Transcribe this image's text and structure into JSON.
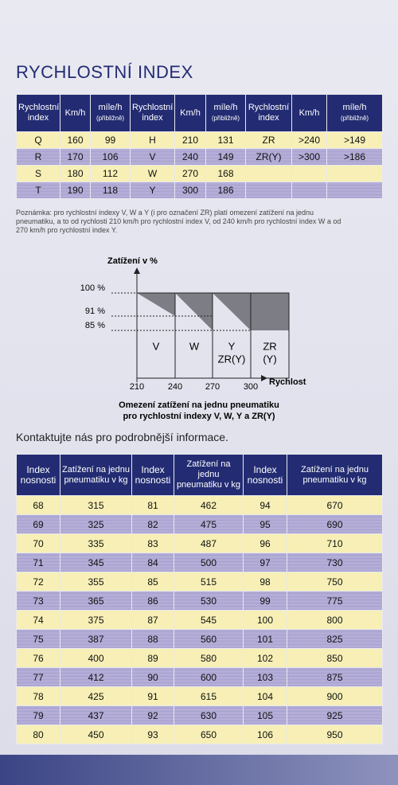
{
  "title": "RYCHLOSTNÍ INDEX",
  "speed_table": {
    "header": [
      {
        "main": "Rychlostní index"
      },
      {
        "main": "Km/h"
      },
      {
        "main": "míle/h",
        "sub": "(přibližně)"
      },
      {
        "main": "Rychlostní index"
      },
      {
        "main": "Km/h"
      },
      {
        "main": "míle/h",
        "sub": "(přibližně)"
      },
      {
        "main": "Rychlostní index"
      },
      {
        "main": "Km/h"
      },
      {
        "main": "míle/h",
        "sub": "(přibližně)"
      }
    ],
    "rows": [
      [
        "Q",
        "160",
        "99",
        "H",
        "210",
        "131",
        "ZR",
        ">240",
        ">149"
      ],
      [
        "R",
        "170",
        "106",
        "V",
        "240",
        "149",
        "ZR(Y)",
        ">300",
        ">186"
      ],
      [
        "S",
        "180",
        "112",
        "W",
        "270",
        "168"
      ],
      [
        "T",
        "190",
        "118",
        "Y",
        "300",
        "186"
      ]
    ]
  },
  "note": "Poznámka: pro rychlostní indexy V, W a Y (i pro označení ZR) platí omezení zatížení na jednu pneumatiku, a to od rychlosti 210 km/h pro rychlostní index V, od 240 km/h pro rychlostní index W a od 270 km/h pro rychlostní index Y.",
  "diagram": {
    "y_label": "Zatížení v %",
    "y_ticks": [
      "100 %",
      "91 %",
      "85 %"
    ],
    "x_ticks": [
      "210",
      "240",
      "270",
      "300"
    ],
    "x_label": "Rychlost",
    "zones": [
      [
        "V"
      ],
      [
        "W"
      ],
      [
        "Y",
        "ZR(Y)"
      ],
      [
        "ZR",
        "(Y)"
      ]
    ],
    "caption": [
      "Omezení zatížení na jednu pneumatiku",
      "pro rychlostní indexy V, W, Y a ZR(Y)"
    ]
  },
  "contact": "Kontaktujte nás pro podrobnější informace.",
  "load_table": {
    "header": [
      "Index nosnosti",
      "Zatížení na jednu pneumatiku v kg",
      "Index nosnosti",
      "Zatížení na jednu pneumatiku v kg",
      "Index nosnosti",
      "Zatížení na jednu pneumatiku v kg"
    ],
    "rows": [
      [
        68,
        315,
        81,
        462,
        94,
        670
      ],
      [
        69,
        325,
        82,
        475,
        95,
        690
      ],
      [
        70,
        335,
        83,
        487,
        96,
        710
      ],
      [
        71,
        345,
        84,
        500,
        97,
        730
      ],
      [
        72,
        355,
        85,
        515,
        98,
        750
      ],
      [
        73,
        365,
        86,
        530,
        99,
        775
      ],
      [
        74,
        375,
        87,
        545,
        100,
        800
      ],
      [
        75,
        387,
        88,
        560,
        101,
        825
      ],
      [
        76,
        400,
        89,
        580,
        102,
        850
      ],
      [
        77,
        412,
        90,
        600,
        103,
        875
      ],
      [
        78,
        425,
        91,
        615,
        104,
        900
      ],
      [
        79,
        437,
        92,
        630,
        105,
        925
      ],
      [
        80,
        450,
        93,
        650,
        106,
        950
      ]
    ]
  }
}
